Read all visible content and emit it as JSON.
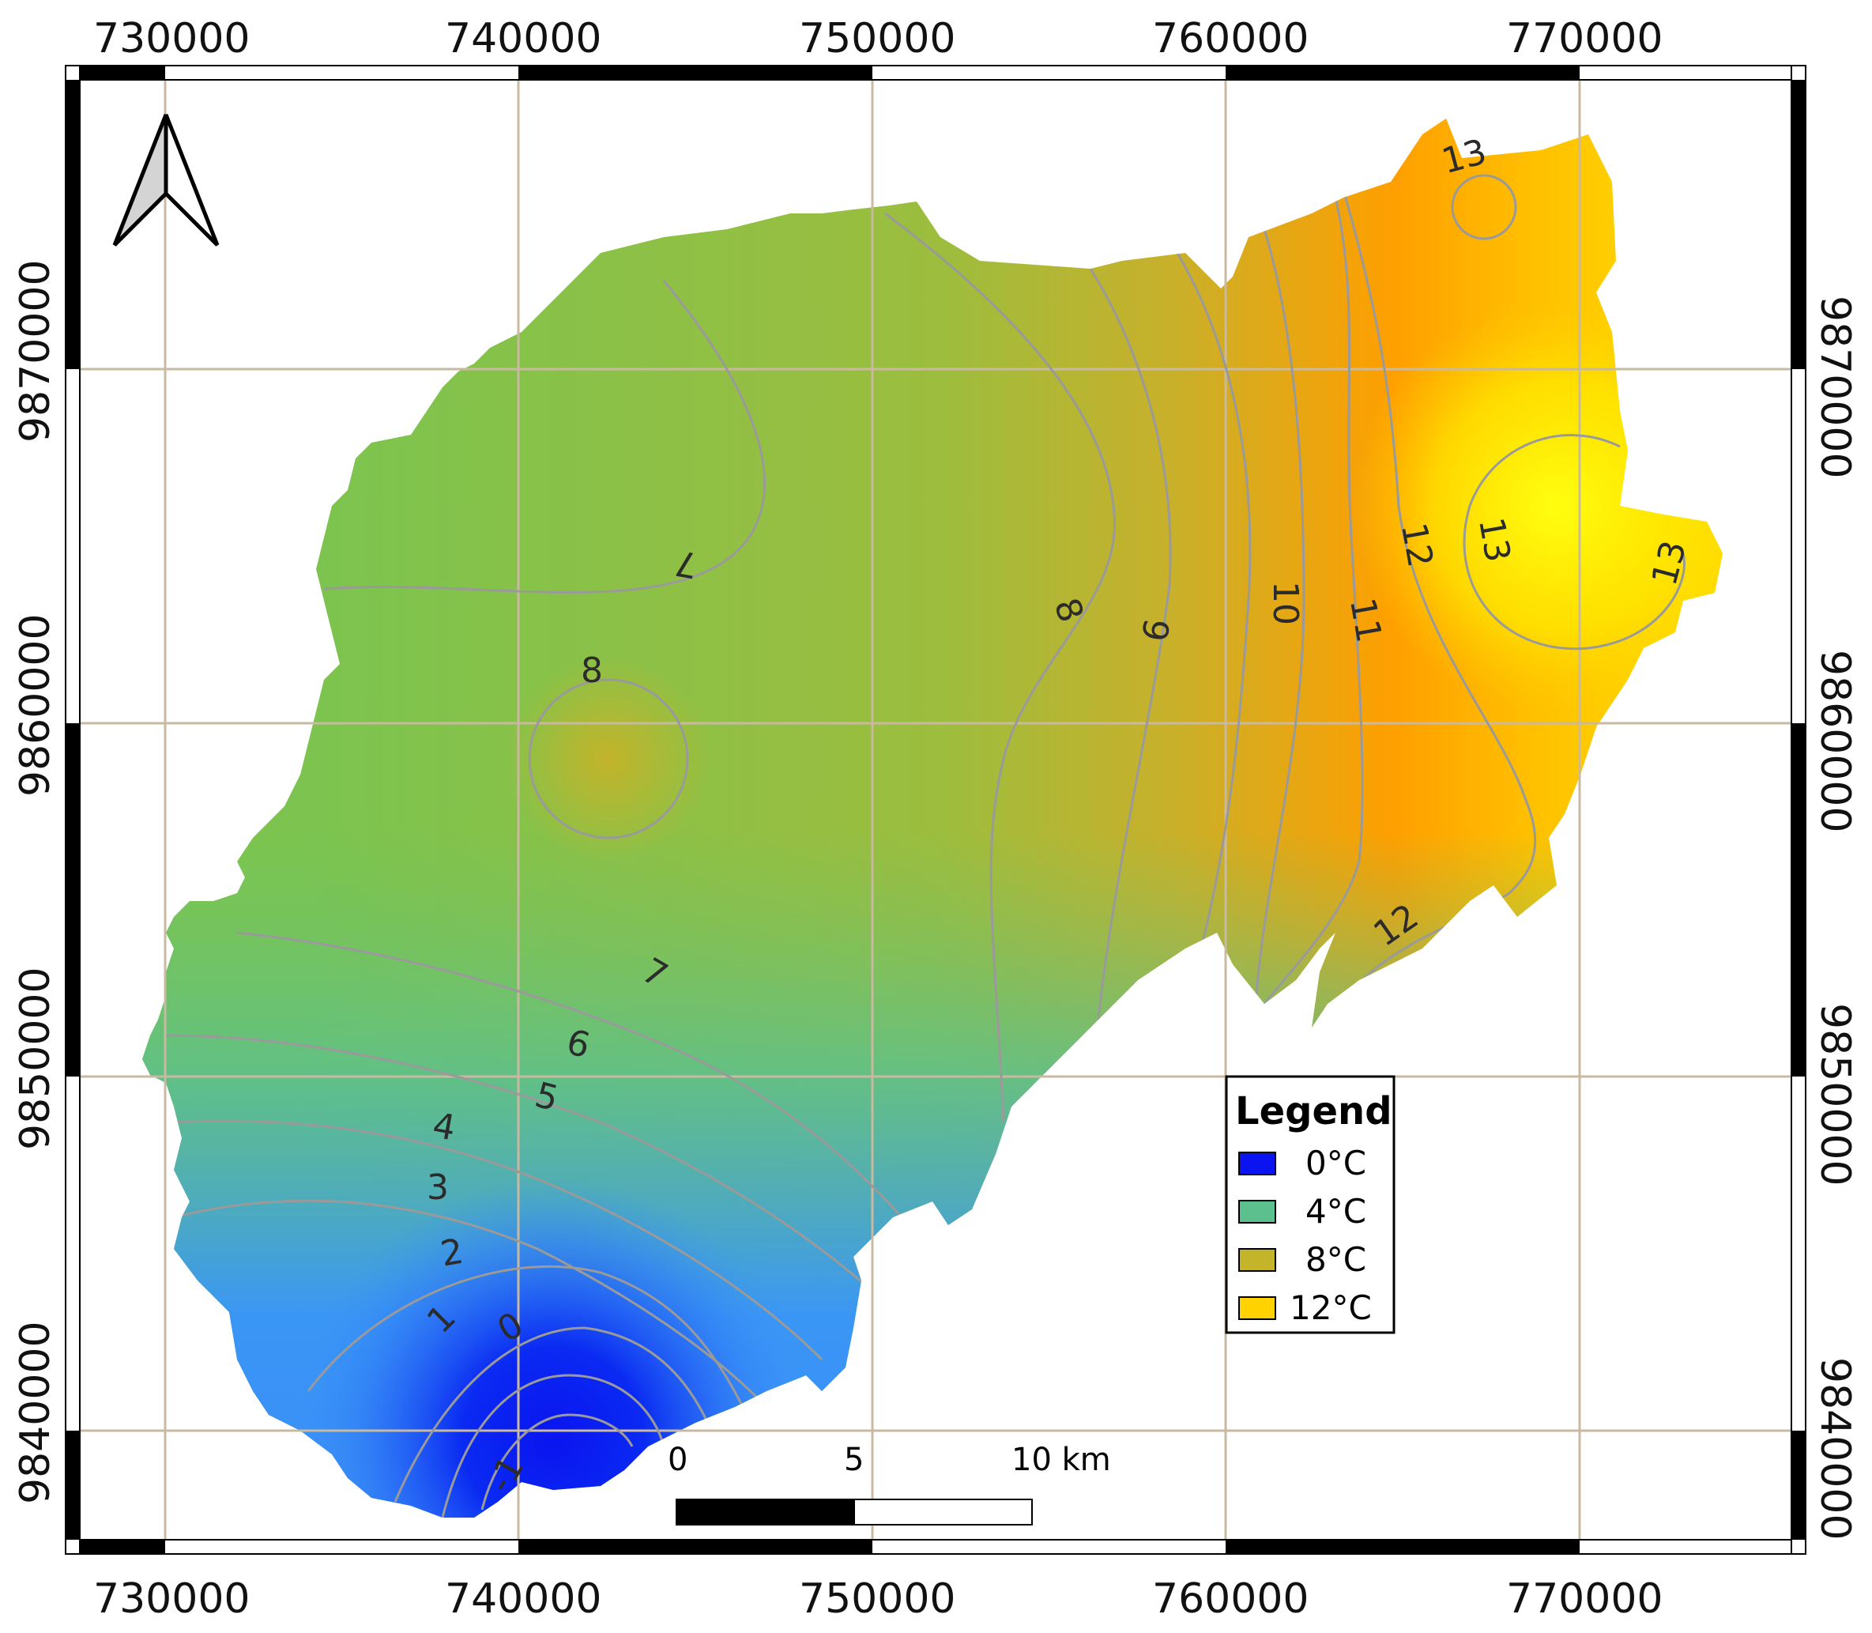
{
  "map": {
    "top_x_labels": [
      "730000",
      "740000",
      "750000",
      "760000",
      "770000"
    ],
    "bottom_x_labels": [
      "730000",
      "740000",
      "750000",
      "760000",
      "770000"
    ],
    "left_y_labels": [
      "9870000",
      "9860000",
      "9850000",
      "9840000"
    ],
    "right_y_labels": [
      "9870000",
      "9860000",
      "9850000",
      "9840000"
    ]
  },
  "contour_labels": {
    "c7_top": "7",
    "c8_circle": "8",
    "c8_right": "8",
    "c9": "9",
    "c10": "10",
    "c11": "11",
    "c12_upper": "12",
    "c12_lower": "12",
    "c13_top": "13",
    "c13_mid": "13",
    "c13_right": "13",
    "c7_low": "7",
    "c6": "6",
    "c5": "5",
    "c4": "4",
    "c3": "3",
    "c2": "2",
    "c1": "1",
    "c0": "0",
    "c_minus": "-1"
  },
  "legend": {
    "title": "Legend",
    "items": [
      {
        "label": "0°C",
        "color": "#0a14f0"
      },
      {
        "label": "4°C",
        "color": "#5cc08e"
      },
      {
        "label": "8°C",
        "color": "#c3b42a"
      },
      {
        "label": "12°C",
        "color": "#ffd200"
      }
    ]
  },
  "scale_bar": {
    "labels": [
      "0",
      "5",
      "10 km"
    ]
  },
  "colors": {
    "cold": "#0a14f0",
    "cool": "#3a96f5",
    "mild": "#5cc08e",
    "green": "#7cc44f",
    "olive": "#c3b42a",
    "orange": "#ffa000",
    "warm": "#ffd200",
    "hot": "#ffff10"
  }
}
